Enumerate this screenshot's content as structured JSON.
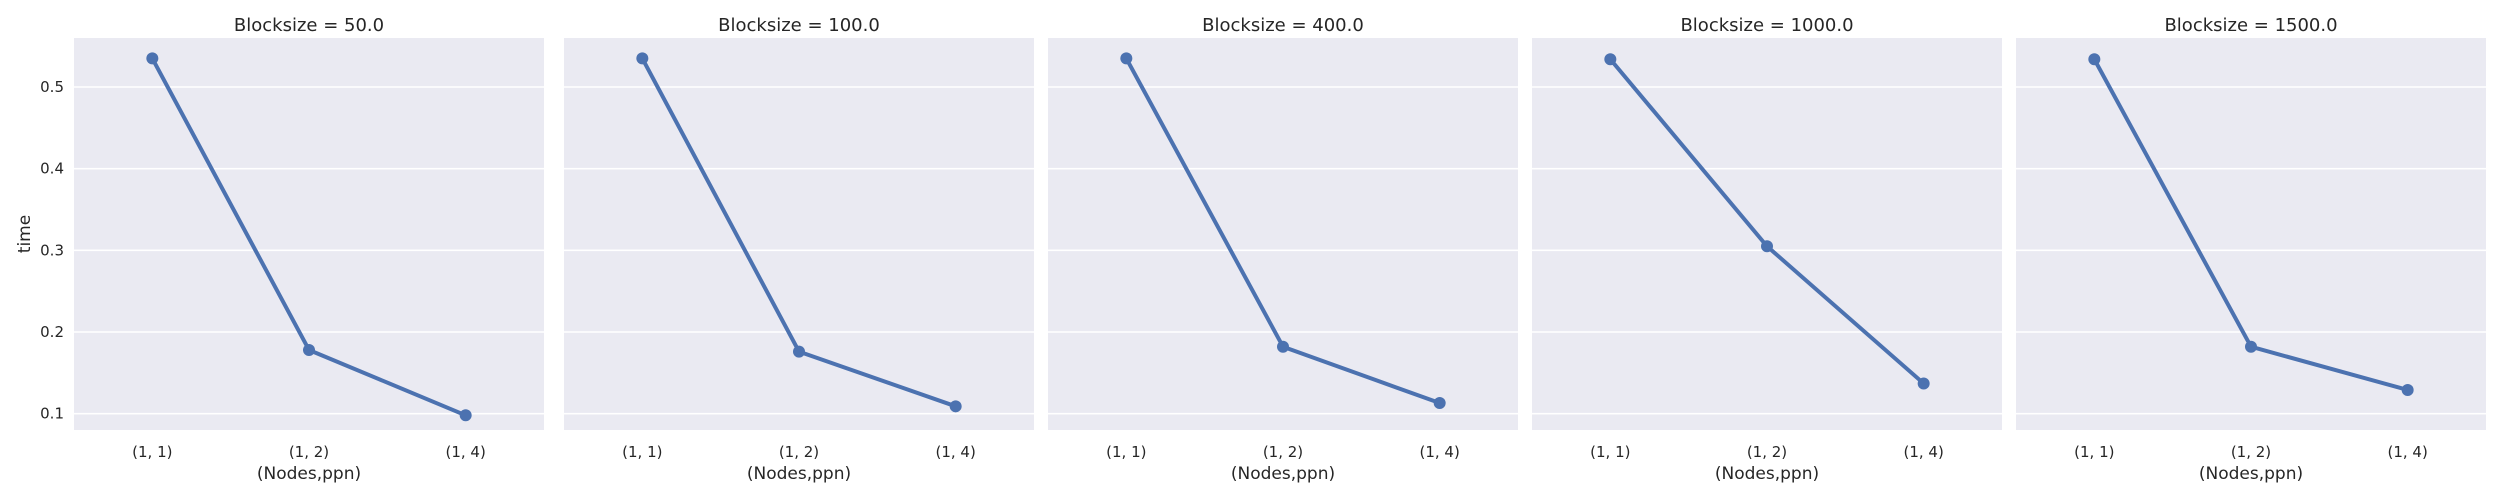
{
  "chart_data": {
    "type": "line",
    "ylabel": "time",
    "xlabel": "(Nodes,ppn)",
    "ylim": [
      0.08,
      0.56
    ],
    "yticks": [
      0.1,
      0.2,
      0.3,
      0.4,
      0.5
    ],
    "grid": true,
    "series_color": "#4c72b0",
    "panel_background": "#eaeaf2",
    "panels": [
      {
        "title": "Blocksize = 50.0",
        "categories": [
          "(1, 1)",
          "(1, 2)",
          "(1, 4)"
        ],
        "values": [
          0.535,
          0.178,
          0.098
        ]
      },
      {
        "title": "Blocksize = 100.0",
        "categories": [
          "(1, 1)",
          "(1, 2)",
          "(1, 4)"
        ],
        "values": [
          0.535,
          0.176,
          0.109
        ]
      },
      {
        "title": "Blocksize = 400.0",
        "categories": [
          "(1, 1)",
          "(1, 2)",
          "(1, 4)"
        ],
        "values": [
          0.535,
          0.182,
          0.113
        ]
      },
      {
        "title": "Blocksize = 1000.0",
        "categories": [
          "(1, 1)",
          "(1, 2)",
          "(1, 4)"
        ],
        "values": [
          0.534,
          0.305,
          0.137
        ]
      },
      {
        "title": "Blocksize = 1500.0",
        "categories": [
          "(1, 1)",
          "(1, 2)",
          "(1, 4)"
        ],
        "values": [
          0.534,
          0.182,
          0.129
        ]
      }
    ]
  }
}
